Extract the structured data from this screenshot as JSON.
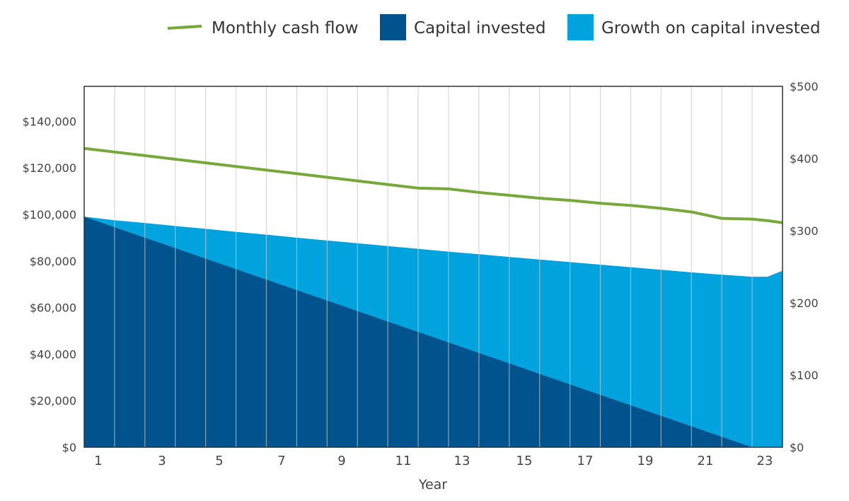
{
  "chart_data": {
    "type": "area",
    "xlabel": "Year",
    "x": [
      1,
      2,
      3,
      4,
      5,
      6,
      7,
      8,
      9,
      10,
      11,
      12,
      13,
      14,
      15,
      16,
      17,
      18,
      19,
      20,
      21,
      22,
      23,
      23.5,
      24
    ],
    "x_ticks": [
      "1",
      "3",
      "5",
      "7",
      "9",
      "11",
      "13",
      "15",
      "17",
      "19",
      "21",
      "23"
    ],
    "y_left": {
      "ylim": [
        0,
        155000
      ],
      "ticks": [
        0,
        20000,
        40000,
        60000,
        80000,
        100000,
        120000,
        140000
      ],
      "tick_labels": [
        "$0",
        "$20,000",
        "$40,000",
        "$60,000",
        "$80,000",
        "$100,000",
        "$120,000",
        "$140,000"
      ]
    },
    "y_right": {
      "ylim": [
        0,
        500
      ],
      "ticks": [
        0,
        100,
        200,
        300,
        400,
        500
      ],
      "tick_labels": [
        "$0",
        "$100",
        "$200",
        "$300",
        "$400",
        "$500"
      ]
    },
    "series": [
      {
        "name": "Capital invested",
        "axis": "left",
        "color": "#00538C",
        "values": [
          99000,
          94500,
          90000,
          85500,
          81000,
          76500,
          72000,
          67500,
          63000,
          58500,
          54000,
          49500,
          45000,
          40500,
          36000,
          31500,
          27000,
          22500,
          18000,
          13500,
          9000,
          4500,
          0,
          0,
          0
        ]
      },
      {
        "name": "Growth on capital invested",
        "axis": "left",
        "color": "#00A3DD",
        "values": [
          99000,
          97500,
          96300,
          95000,
          93800,
          92500,
          91300,
          90000,
          88800,
          87600,
          86400,
          85200,
          84000,
          82900,
          81700,
          80600,
          79500,
          78400,
          77300,
          76200,
          75100,
          74100,
          73200,
          73200,
          75800
        ]
      },
      {
        "name": "Monthly cash flow",
        "axis": "right",
        "color": "#76A83A",
        "values": [
          414,
          409,
          404,
          399,
          394,
          389,
          384,
          379,
          374,
          369,
          364,
          359,
          358,
          353,
          349,
          345,
          342,
          338,
          335,
          331,
          326,
          317,
          316,
          314,
          311
        ]
      }
    ],
    "legend_position": "top-right",
    "grid": "vertical"
  }
}
